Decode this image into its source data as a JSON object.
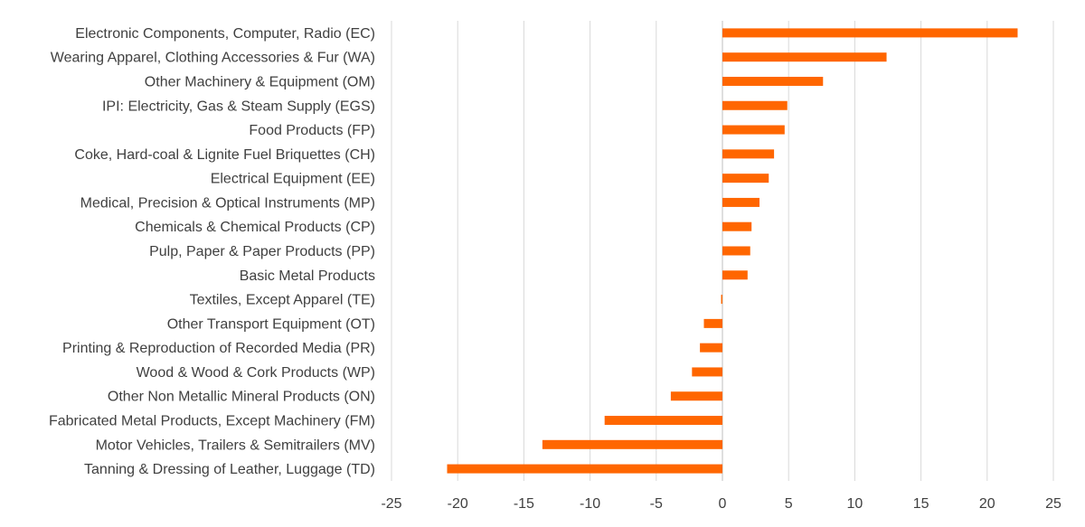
{
  "chart_data": {
    "type": "bar",
    "orientation": "horizontal",
    "title": "",
    "xlabel": "",
    "ylabel": "",
    "xlim": [
      -25,
      25
    ],
    "xticks": [
      -25,
      -20,
      -15,
      -10,
      -5,
      0,
      5,
      10,
      15,
      20,
      25
    ],
    "tick_labels": [
      "-25",
      "-20",
      "-15",
      "-10",
      "-5",
      "0",
      "5",
      "10",
      "15",
      "20",
      "25"
    ],
    "grid": true,
    "legend": "none",
    "bar_color": "#ff6600",
    "categories": [
      "Electronic Components, Computer, Radio (EC)",
      "Wearing Apparel, Clothing Accessories & Fur (WA)",
      "Other Machinery & Equipment (OM)",
      "IPI: Electricity, Gas & Steam Supply (EGS)",
      "Food Products (FP)",
      "Coke, Hard-coal & Lignite Fuel Briquettes (CH)",
      "Electrical Equipment (EE)",
      "Medical, Precision & Optical Instruments (MP)",
      "Chemicals & Chemical Products (CP)",
      "Pulp, Paper & Paper Products (PP)",
      "Basic Metal Products",
      "Textiles, Except Apparel (TE)",
      "Other Transport Equipment (OT)",
      "Printing & Reproduction of Recorded Media (PR)",
      "Wood & Wood & Cork Products (WP)",
      "Other Non Metallic Mineral Products (ON)",
      "Fabricated Metal Products, Except Machinery (FM)",
      "Motor Vehicles, Trailers & Semitrailers (MV)",
      "Tanning & Dressing of Leather, Luggage (TD)"
    ],
    "values": [
      22.3,
      12.4,
      7.6,
      4.9,
      4.7,
      3.9,
      3.5,
      2.8,
      2.2,
      2.1,
      1.9,
      -0.1,
      -1.4,
      -1.7,
      -2.3,
      -3.9,
      -8.9,
      -13.6,
      -20.8
    ]
  }
}
